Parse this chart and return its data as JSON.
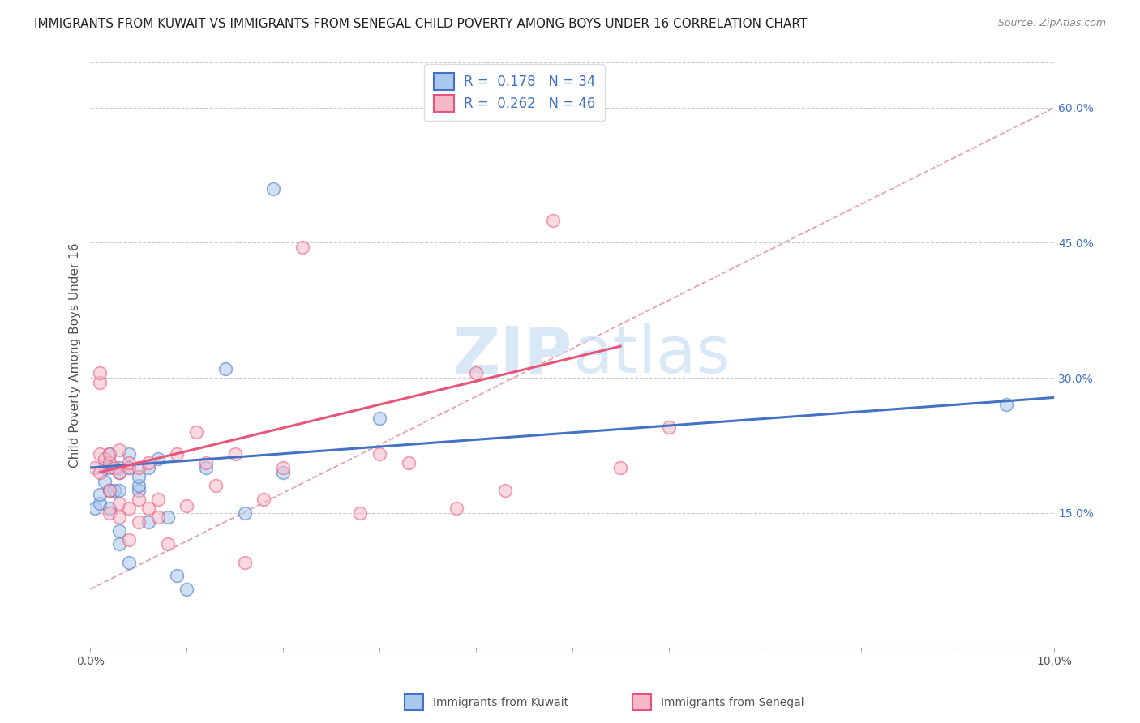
{
  "title": "IMMIGRANTS FROM KUWAIT VS IMMIGRANTS FROM SENEGAL CHILD POVERTY AMONG BOYS UNDER 16 CORRELATION CHART",
  "source": "Source: ZipAtlas.com",
  "ylabel": "Child Poverty Among Boys Under 16",
  "legend_label_1": "Immigrants from Kuwait",
  "legend_label_2": "Immigrants from Senegal",
  "R1": 0.178,
  "N1": 34,
  "R2": 0.262,
  "N2": 46,
  "color_kuwait_fill": "#A8C8EE",
  "color_senegal_fill": "#F5B8C8",
  "color_kuwait_edge": "#4472C4",
  "color_senegal_edge": "#E8547A",
  "color_kuwait_line": "#4472C4",
  "color_senegal_line": "#E8547A",
  "color_dashed": "#E8A0B0",
  "xlim": [
    0,
    0.1
  ],
  "ylim": [
    0,
    0.65
  ],
  "xtick_labels_bottom": [
    "0.0%",
    "10.0%"
  ],
  "xtick_pos_bottom": [
    0.0,
    0.1
  ],
  "ytick_right": [
    0.15,
    0.3,
    0.45,
    0.6
  ],
  "ytick_right_labels": [
    "15.0%",
    "30.0%",
    "45.0%",
    "60.0%"
  ],
  "kuwait_x": [
    0.0005,
    0.001,
    0.001,
    0.0015,
    0.0015,
    0.002,
    0.002,
    0.002,
    0.002,
    0.0025,
    0.003,
    0.003,
    0.003,
    0.003,
    0.003,
    0.004,
    0.004,
    0.004,
    0.005,
    0.005,
    0.005,
    0.006,
    0.006,
    0.007,
    0.008,
    0.009,
    0.01,
    0.012,
    0.014,
    0.016,
    0.02,
    0.03,
    0.019,
    0.095
  ],
  "kuwait_y": [
    0.155,
    0.16,
    0.17,
    0.185,
    0.2,
    0.155,
    0.175,
    0.2,
    0.215,
    0.175,
    0.115,
    0.13,
    0.2,
    0.175,
    0.195,
    0.095,
    0.2,
    0.215,
    0.175,
    0.18,
    0.19,
    0.14,
    0.2,
    0.21,
    0.145,
    0.08,
    0.065,
    0.2,
    0.31,
    0.15,
    0.195,
    0.255,
    0.51,
    0.27
  ],
  "senegal_x": [
    0.0005,
    0.001,
    0.001,
    0.001,
    0.001,
    0.0015,
    0.002,
    0.002,
    0.002,
    0.002,
    0.0025,
    0.003,
    0.003,
    0.003,
    0.003,
    0.004,
    0.004,
    0.004,
    0.004,
    0.005,
    0.005,
    0.005,
    0.006,
    0.006,
    0.007,
    0.007,
    0.008,
    0.009,
    0.01,
    0.011,
    0.012,
    0.013,
    0.015,
    0.016,
    0.018,
    0.02,
    0.022,
    0.028,
    0.03,
    0.033,
    0.038,
    0.04,
    0.043,
    0.048,
    0.055,
    0.06
  ],
  "senegal_y": [
    0.2,
    0.195,
    0.215,
    0.295,
    0.305,
    0.21,
    0.15,
    0.175,
    0.205,
    0.215,
    0.2,
    0.145,
    0.16,
    0.195,
    0.22,
    0.12,
    0.155,
    0.2,
    0.205,
    0.14,
    0.165,
    0.2,
    0.155,
    0.205,
    0.145,
    0.165,
    0.115,
    0.215,
    0.158,
    0.24,
    0.205,
    0.18,
    0.215,
    0.095,
    0.165,
    0.2,
    0.445,
    0.15,
    0.215,
    0.205,
    0.155,
    0.305,
    0.175,
    0.475,
    0.2,
    0.245
  ],
  "kuwait_line_x": [
    0.0,
    0.1
  ],
  "kuwait_line_y": [
    0.2,
    0.278
  ],
  "senegal_line_x": [
    0.001,
    0.055
  ],
  "senegal_line_y": [
    0.195,
    0.335
  ],
  "dashed_line_x": [
    0.0,
    0.1
  ],
  "dashed_line_y": [
    0.065,
    0.6
  ],
  "watermark_zip": "ZIP",
  "watermark_atlas": "atlas",
  "title_fontsize": 11,
  "axis_label_fontsize": 11,
  "tick_fontsize": 10,
  "legend_fontsize": 12,
  "scatter_size": 130,
  "scatter_alpha": 0.55,
  "scatter_linewidth": 1.2
}
